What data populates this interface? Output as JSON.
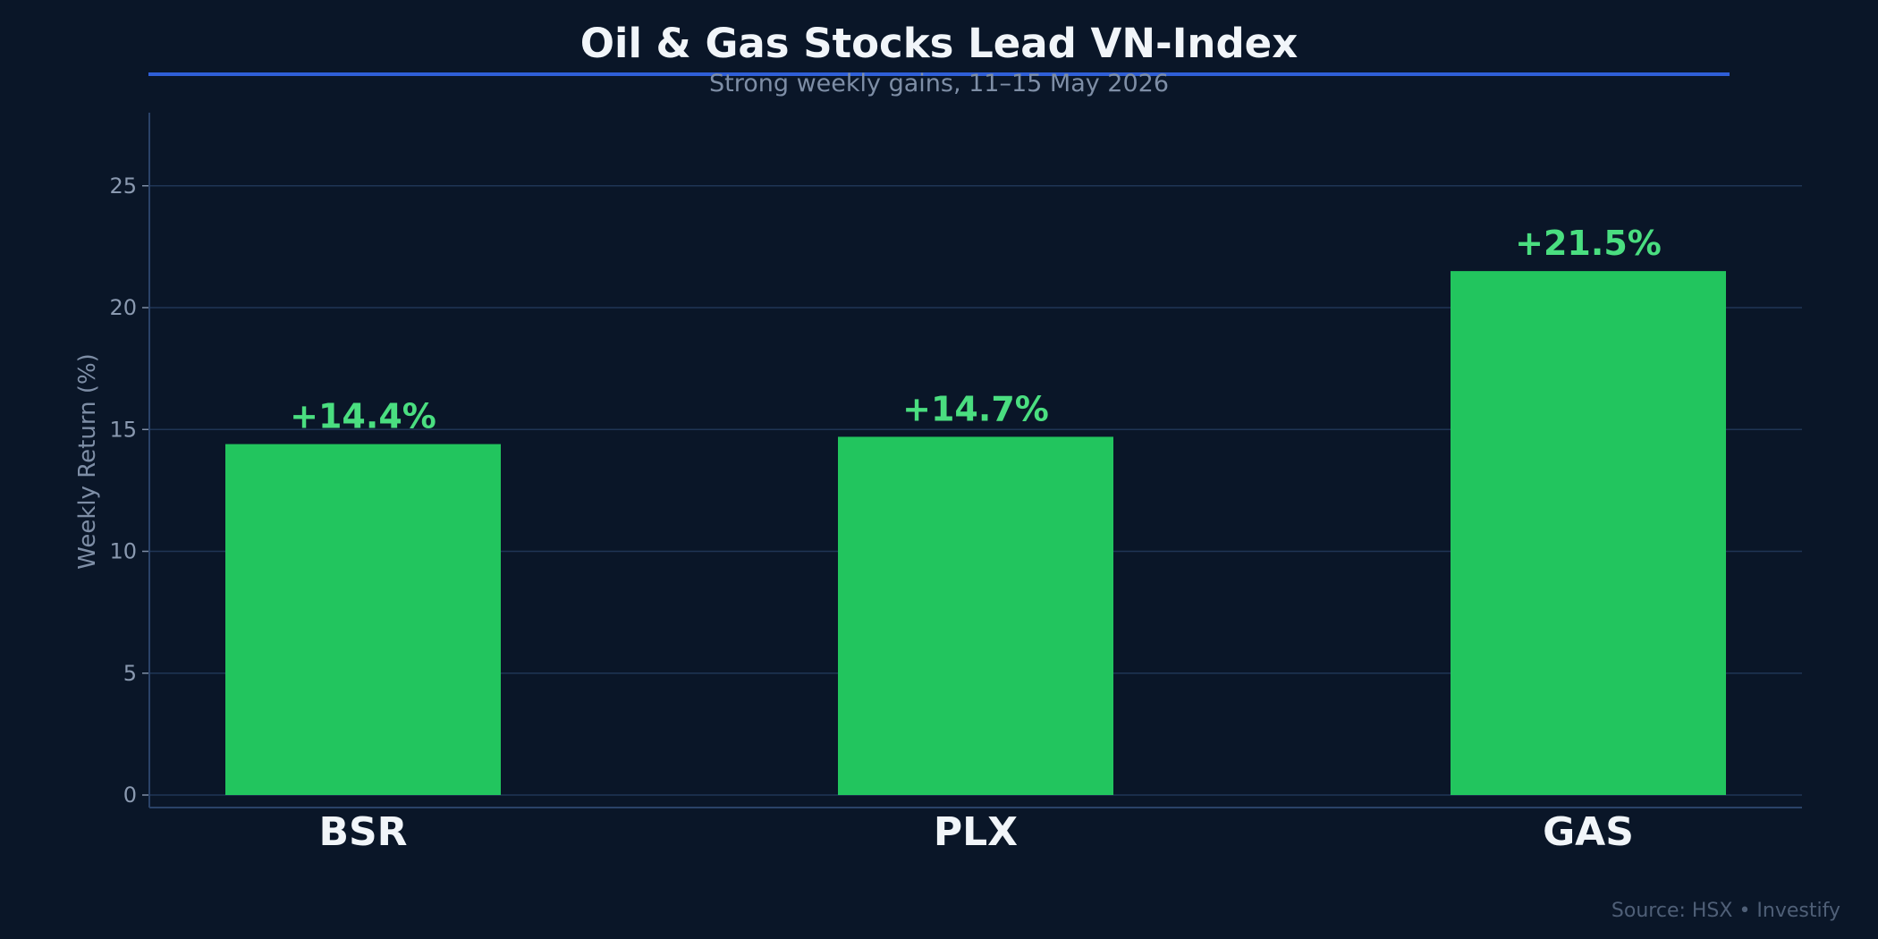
{
  "chart_data": {
    "type": "bar",
    "title": "Oil & Gas Stocks Lead VN-Index",
    "subtitle": "Strong weekly gains, 11–15 May 2026",
    "xlabel": "",
    "ylabel": "Weekly Return (%)",
    "categories": [
      "BSR",
      "PLX",
      "GAS"
    ],
    "values": [
      14.4,
      14.7,
      21.5
    ],
    "data_labels": [
      "+14.4%",
      "+14.7%",
      "+21.5%"
    ],
    "ylim": [
      0,
      28
    ],
    "yticks": [
      0,
      5,
      10,
      15,
      20,
      25
    ],
    "grid": true,
    "legend": "none"
  },
  "footer": {
    "source": "Source: HSX • Investify"
  },
  "colors": {
    "background": "#0a1628",
    "bar": "#22c55e",
    "data_label": "#4ade80",
    "accent_rule": "#2f5fd8",
    "grid": "#1f3555"
  }
}
